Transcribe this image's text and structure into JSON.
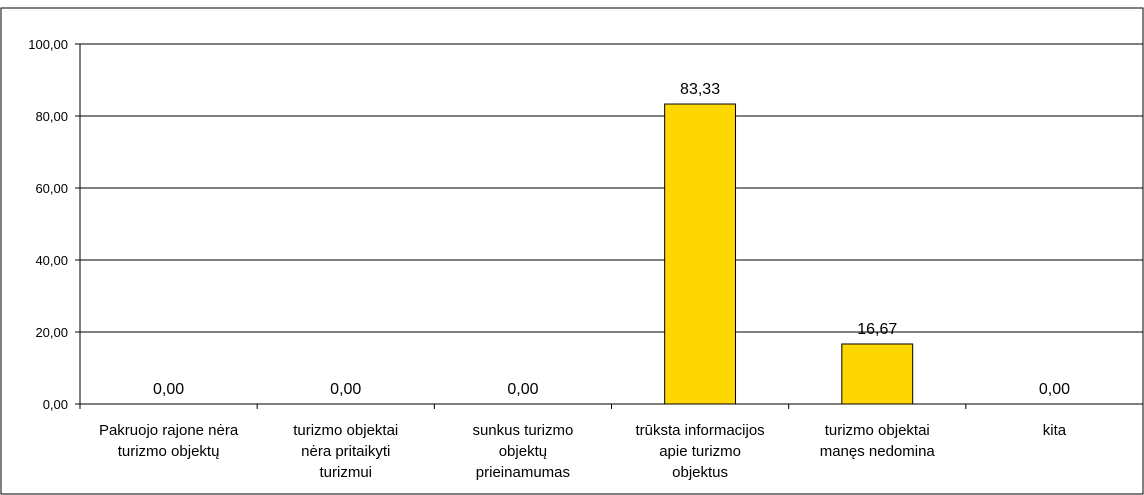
{
  "chart_data": {
    "type": "bar",
    "categories": [
      [
        "Pakruojo rajone nėra",
        "turizmo objektų"
      ],
      [
        "turizmo objektai",
        "nėra pritaikyti",
        "turizmui"
      ],
      [
        "sunkus turizmo",
        "objektų",
        "prieinamumas"
      ],
      [
        "trūksta informacijos",
        "apie turizmo",
        "objektus"
      ],
      [
        "turizmo objektai",
        "manęs nedomina"
      ],
      [
        "kita"
      ]
    ],
    "values": [
      0.0,
      0.0,
      0.0,
      83.33,
      16.67,
      0.0
    ],
    "data_labels": [
      "0,00",
      "0,00",
      "0,00",
      "83,33",
      "16,67",
      "0,00"
    ],
    "yticks": [
      0,
      20,
      40,
      60,
      80,
      100
    ],
    "ytick_labels": [
      "0,00",
      "20,00",
      "40,00",
      "60,00",
      "80,00",
      "100,00"
    ],
    "ylim": [
      0,
      100
    ],
    "grid": true,
    "colors": {
      "bar_fill": "#FFD700",
      "bar_stroke": "#000000",
      "grid": "#000000",
      "background": "#FFFFFF"
    }
  }
}
